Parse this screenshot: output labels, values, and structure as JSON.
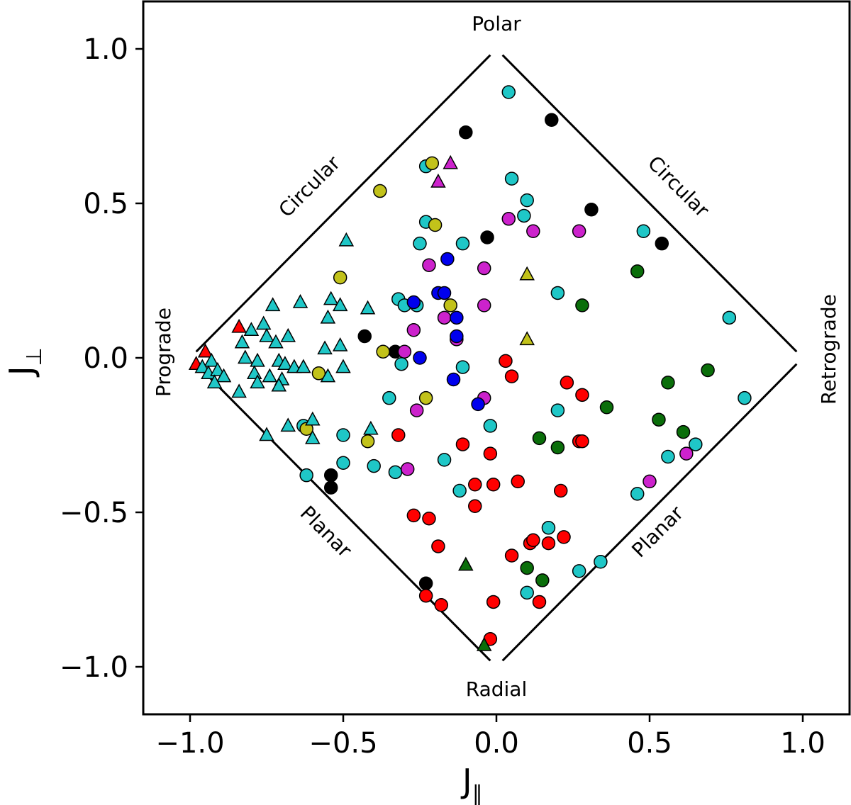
{
  "chart_data": {
    "type": "scatter",
    "title": "",
    "xlabel": "J",
    "xlabel_subscript": "∥",
    "ylabel": "J",
    "ylabel_subscript": "⊥",
    "xlim": [
      -1.15,
      1.15
    ],
    "ylim": [
      -1.15,
      1.15
    ],
    "xticks": [
      -1.0,
      -0.5,
      0.0,
      0.5,
      1.0
    ],
    "xtick_labels": [
      "−1.0",
      "−0.5",
      "0.0",
      "0.5",
      "1.0"
    ],
    "yticks": [
      1.0,
      0.5,
      0.0,
      -0.5,
      -1.0
    ],
    "ytick_labels": [
      "1.0",
      "0.5",
      "0.0",
      "−0.5",
      "−1.0"
    ],
    "grid": false,
    "region_labels": {
      "top": "Polar",
      "bottom": "Radial",
      "left": "Prograde",
      "right": "Retrograde",
      "upper_left": "Circular",
      "upper_right": "Circular",
      "lower_left": "Planar",
      "lower_right": "Planar"
    },
    "colors": {
      "cyan": "#1fc7c7",
      "black": "#000000",
      "red": "#ff0000",
      "green": "#0a6e0a",
      "magenta": "#cc22cc",
      "olive": "#c2c21a",
      "blue": "#0000ee"
    },
    "circles": [
      {
        "color": "cyan",
        "x": 0.04,
        "y": 0.86
      },
      {
        "color": "cyan",
        "x": 0.05,
        "y": 0.58
      },
      {
        "color": "cyan",
        "x": 0.1,
        "y": 0.51
      },
      {
        "color": "cyan",
        "x": 0.09,
        "y": 0.46
      },
      {
        "color": "cyan",
        "x": -0.23,
        "y": 0.62
      },
      {
        "color": "cyan",
        "x": -0.23,
        "y": 0.44
      },
      {
        "color": "cyan",
        "x": -0.25,
        "y": 0.37
      },
      {
        "color": "cyan",
        "x": -0.11,
        "y": 0.37
      },
      {
        "color": "cyan",
        "x": -0.32,
        "y": 0.19
      },
      {
        "color": "cyan",
        "x": -0.3,
        "y": 0.17
      },
      {
        "color": "cyan",
        "x": -0.26,
        "y": 0.17
      },
      {
        "color": "cyan",
        "x": -0.31,
        "y": -0.02
      },
      {
        "color": "cyan",
        "x": -0.11,
        "y": -0.03
      },
      {
        "color": "cyan",
        "x": -0.35,
        "y": -0.13
      },
      {
        "color": "cyan",
        "x": 0.2,
        "y": 0.21
      },
      {
        "color": "cyan",
        "x": 0.48,
        "y": 0.41
      },
      {
        "color": "cyan",
        "x": 0.76,
        "y": 0.13
      },
      {
        "color": "cyan",
        "x": 0.81,
        "y": -0.13
      },
      {
        "color": "cyan",
        "x": 0.2,
        "y": -0.17
      },
      {
        "color": "cyan",
        "x": -0.02,
        "y": -0.22
      },
      {
        "color": "cyan",
        "x": -0.5,
        "y": -0.25
      },
      {
        "color": "cyan",
        "x": -0.5,
        "y": -0.34
      },
      {
        "color": "cyan",
        "x": -0.4,
        "y": -0.35
      },
      {
        "color": "cyan",
        "x": -0.33,
        "y": -0.37
      },
      {
        "color": "cyan",
        "x": -0.17,
        "y": -0.33
      },
      {
        "color": "cyan",
        "x": -0.12,
        "y": -0.43
      },
      {
        "color": "cyan",
        "x": -0.62,
        "y": -0.38
      },
      {
        "color": "cyan",
        "x": -0.63,
        "y": -0.22
      },
      {
        "color": "cyan",
        "x": 0.56,
        "y": -0.32
      },
      {
        "color": "cyan",
        "x": 0.65,
        "y": -0.28
      },
      {
        "color": "cyan",
        "x": 0.46,
        "y": -0.44
      },
      {
        "color": "cyan",
        "x": 0.17,
        "y": -0.55
      },
      {
        "color": "cyan",
        "x": 0.27,
        "y": -0.69
      },
      {
        "color": "cyan",
        "x": 0.34,
        "y": -0.66
      },
      {
        "color": "cyan",
        "x": 0.1,
        "y": -0.76
      },
      {
        "color": "black",
        "x": 0.18,
        "y": 0.77
      },
      {
        "color": "black",
        "x": -0.1,
        "y": 0.73
      },
      {
        "color": "black",
        "x": 0.31,
        "y": 0.48
      },
      {
        "color": "black",
        "x": 0.54,
        "y": 0.37
      },
      {
        "color": "black",
        "x": -0.03,
        "y": 0.39
      },
      {
        "color": "black",
        "x": -0.43,
        "y": 0.07
      },
      {
        "color": "black",
        "x": -0.33,
        "y": 0.02
      },
      {
        "color": "black",
        "x": -0.54,
        "y": -0.38
      },
      {
        "color": "black",
        "x": -0.54,
        "y": -0.42
      },
      {
        "color": "black",
        "x": -0.23,
        "y": -0.73
      },
      {
        "color": "red",
        "x": 0.03,
        "y": -0.01
      },
      {
        "color": "red",
        "x": 0.05,
        "y": -0.06
      },
      {
        "color": "red",
        "x": 0.23,
        "y": -0.08
      },
      {
        "color": "red",
        "x": 0.28,
        "y": -0.12
      },
      {
        "color": "red",
        "x": -0.32,
        "y": -0.25
      },
      {
        "color": "red",
        "x": -0.11,
        "y": -0.28
      },
      {
        "color": "red",
        "x": -0.02,
        "y": -0.31
      },
      {
        "color": "red",
        "x": 0.27,
        "y": -0.27
      },
      {
        "color": "red",
        "x": 0.28,
        "y": -0.27
      },
      {
        "color": "red",
        "x": -0.07,
        "y": -0.41
      },
      {
        "color": "red",
        "x": -0.01,
        "y": -0.41
      },
      {
        "color": "red",
        "x": 0.07,
        "y": -0.4
      },
      {
        "color": "red",
        "x": 0.21,
        "y": -0.43
      },
      {
        "color": "red",
        "x": -0.07,
        "y": -0.48
      },
      {
        "color": "red",
        "x": -0.27,
        "y": -0.51
      },
      {
        "color": "red",
        "x": -0.22,
        "y": -0.52
      },
      {
        "color": "red",
        "x": -0.19,
        "y": -0.61
      },
      {
        "color": "red",
        "x": 0.05,
        "y": -0.64
      },
      {
        "color": "red",
        "x": 0.11,
        "y": -0.6
      },
      {
        "color": "red",
        "x": 0.12,
        "y": -0.59
      },
      {
        "color": "red",
        "x": 0.17,
        "y": -0.6
      },
      {
        "color": "red",
        "x": 0.22,
        "y": -0.58
      },
      {
        "color": "red",
        "x": -0.23,
        "y": -0.77
      },
      {
        "color": "red",
        "x": -0.18,
        "y": -0.8
      },
      {
        "color": "red",
        "x": -0.01,
        "y": -0.79
      },
      {
        "color": "red",
        "x": 0.14,
        "y": -0.79
      },
      {
        "color": "red",
        "x": -0.02,
        "y": -0.91
      },
      {
        "color": "green",
        "x": 0.46,
        "y": 0.28
      },
      {
        "color": "green",
        "x": 0.28,
        "y": 0.17
      },
      {
        "color": "green",
        "x": 0.69,
        "y": -0.04
      },
      {
        "color": "green",
        "x": 0.56,
        "y": -0.08
      },
      {
        "color": "green",
        "x": 0.36,
        "y": -0.16
      },
      {
        "color": "green",
        "x": 0.53,
        "y": -0.2
      },
      {
        "color": "green",
        "x": 0.61,
        "y": -0.24
      },
      {
        "color": "green",
        "x": 0.14,
        "y": -0.26
      },
      {
        "color": "green",
        "x": 0.2,
        "y": -0.29
      },
      {
        "color": "green",
        "x": 0.1,
        "y": -0.68
      },
      {
        "color": "green",
        "x": 0.15,
        "y": -0.72
      },
      {
        "color": "magenta",
        "x": 0.04,
        "y": 0.45
      },
      {
        "color": "magenta",
        "x": 0.12,
        "y": 0.41
      },
      {
        "color": "magenta",
        "x": 0.27,
        "y": 0.41
      },
      {
        "color": "magenta",
        "x": -0.22,
        "y": 0.3
      },
      {
        "color": "magenta",
        "x": -0.04,
        "y": 0.29
      },
      {
        "color": "magenta",
        "x": -0.04,
        "y": 0.17
      },
      {
        "color": "magenta",
        "x": -0.17,
        "y": 0.13
      },
      {
        "color": "magenta",
        "x": -0.27,
        "y": 0.09
      },
      {
        "color": "magenta",
        "x": -0.13,
        "y": 0.06
      },
      {
        "color": "magenta",
        "x": -0.3,
        "y": 0.02
      },
      {
        "color": "magenta",
        "x": -0.04,
        "y": -0.13
      },
      {
        "color": "magenta",
        "x": -0.26,
        "y": -0.17
      },
      {
        "color": "magenta",
        "x": -0.29,
        "y": -0.36
      },
      {
        "color": "magenta",
        "x": 0.5,
        "y": -0.4
      },
      {
        "color": "magenta",
        "x": 0.62,
        "y": -0.31
      },
      {
        "color": "olive",
        "x": -0.21,
        "y": 0.63
      },
      {
        "color": "olive",
        "x": -0.38,
        "y": 0.54
      },
      {
        "color": "olive",
        "x": -0.2,
        "y": 0.43
      },
      {
        "color": "olive",
        "x": -0.51,
        "y": 0.26
      },
      {
        "color": "olive",
        "x": -0.15,
        "y": 0.17
      },
      {
        "color": "olive",
        "x": -0.37,
        "y": 0.02
      },
      {
        "color": "olive",
        "x": -0.58,
        "y": -0.05
      },
      {
        "color": "olive",
        "x": -0.23,
        "y": -0.13
      },
      {
        "color": "olive",
        "x": -0.62,
        "y": -0.23
      },
      {
        "color": "olive",
        "x": -0.42,
        "y": -0.27
      },
      {
        "color": "blue",
        "x": -0.16,
        "y": 0.32
      },
      {
        "color": "blue",
        "x": -0.19,
        "y": 0.21
      },
      {
        "color": "blue",
        "x": -0.17,
        "y": 0.21
      },
      {
        "color": "blue",
        "x": -0.27,
        "y": 0.18
      },
      {
        "color": "blue",
        "x": -0.13,
        "y": 0.13
      },
      {
        "color": "blue",
        "x": -0.13,
        "y": 0.07
      },
      {
        "color": "blue",
        "x": -0.25,
        "y": 0.0
      },
      {
        "color": "blue",
        "x": -0.14,
        "y": -0.07
      },
      {
        "color": "blue",
        "x": -0.06,
        "y": -0.15
      }
    ],
    "triangles": [
      {
        "color": "magenta",
        "x": -0.15,
        "y": 0.63
      },
      {
        "color": "magenta",
        "x": -0.19,
        "y": 0.57
      },
      {
        "color": "olive",
        "x": 0.1,
        "y": 0.27
      },
      {
        "color": "olive",
        "x": 0.1,
        "y": 0.06
      },
      {
        "color": "green",
        "x": -0.1,
        "y": -0.67
      },
      {
        "color": "green",
        "x": -0.04,
        "y": -0.93
      },
      {
        "color": "red",
        "x": -0.84,
        "y": 0.1
      },
      {
        "color": "red",
        "x": -0.95,
        "y": 0.02
      },
      {
        "color": "red",
        "x": -0.98,
        "y": -0.02
      },
      {
        "color": "cyan",
        "x": -0.49,
        "y": 0.38
      },
      {
        "color": "cyan",
        "x": -0.54,
        "y": 0.19
      },
      {
        "color": "cyan",
        "x": -0.51,
        "y": 0.17
      },
      {
        "color": "cyan",
        "x": -0.42,
        "y": 0.16
      },
      {
        "color": "cyan",
        "x": -0.64,
        "y": 0.18
      },
      {
        "color": "cyan",
        "x": -0.55,
        "y": 0.13
      },
      {
        "color": "cyan",
        "x": -0.73,
        "y": 0.17
      },
      {
        "color": "cyan",
        "x": -0.76,
        "y": 0.11
      },
      {
        "color": "cyan",
        "x": -0.8,
        "y": 0.09
      },
      {
        "color": "cyan",
        "x": -0.83,
        "y": 0.05
      },
      {
        "color": "cyan",
        "x": -0.75,
        "y": 0.07
      },
      {
        "color": "cyan",
        "x": -0.72,
        "y": 0.05
      },
      {
        "color": "cyan",
        "x": -0.68,
        "y": 0.07
      },
      {
        "color": "cyan",
        "x": -0.56,
        "y": 0.03
      },
      {
        "color": "cyan",
        "x": -0.51,
        "y": 0.04
      },
      {
        "color": "cyan",
        "x": -0.82,
        "y": 0.0
      },
      {
        "color": "cyan",
        "x": -0.78,
        "y": -0.01
      },
      {
        "color": "cyan",
        "x": -0.71,
        "y": -0.01
      },
      {
        "color": "cyan",
        "x": -0.69,
        "y": -0.02
      },
      {
        "color": "cyan",
        "x": -0.66,
        "y": -0.03
      },
      {
        "color": "cyan",
        "x": -0.63,
        "y": -0.03
      },
      {
        "color": "cyan",
        "x": -0.5,
        "y": -0.03
      },
      {
        "color": "cyan",
        "x": -0.79,
        "y": -0.05
      },
      {
        "color": "cyan",
        "x": -0.74,
        "y": -0.06
      },
      {
        "color": "cyan",
        "x": -0.78,
        "y": -0.08
      },
      {
        "color": "cyan",
        "x": -0.7,
        "y": -0.07
      },
      {
        "color": "cyan",
        "x": -0.71,
        "y": -0.09
      },
      {
        "color": "cyan",
        "x": -0.55,
        "y": -0.06
      },
      {
        "color": "cyan",
        "x": -0.84,
        "y": -0.11
      },
      {
        "color": "cyan",
        "x": -0.93,
        "y": -0.01
      },
      {
        "color": "cyan",
        "x": -0.96,
        "y": -0.03
      },
      {
        "color": "cyan",
        "x": -0.94,
        "y": -0.05
      },
      {
        "color": "cyan",
        "x": -0.91,
        "y": -0.04
      },
      {
        "color": "cyan",
        "x": -0.89,
        "y": -0.06
      },
      {
        "color": "cyan",
        "x": -0.92,
        "y": -0.08
      },
      {
        "color": "cyan",
        "x": -0.6,
        "y": -0.2
      },
      {
        "color": "cyan",
        "x": -0.68,
        "y": -0.22
      },
      {
        "color": "cyan",
        "x": -0.41,
        "y": -0.23
      },
      {
        "color": "cyan",
        "x": -0.75,
        "y": -0.25
      },
      {
        "color": "cyan",
        "x": -0.6,
        "y": -0.26
      }
    ]
  }
}
